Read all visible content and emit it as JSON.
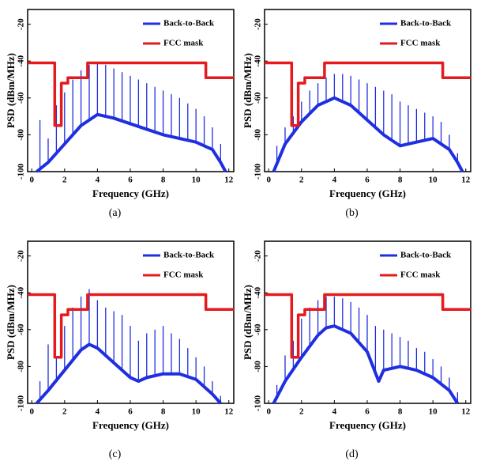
{
  "chart_data": [
    {
      "type": "line",
      "caption": "(a)",
      "xlabel": "Frequency (GHz)",
      "ylabel": "PSD (dBm/MHz)",
      "xlim": [
        -0.25,
        12.3
      ],
      "ylim": [
        -100,
        -12
      ],
      "xticks": [
        0,
        2,
        4,
        6,
        8,
        10,
        12
      ],
      "yticks": [
        -100,
        -80,
        -60,
        -40,
        -20
      ],
      "series": [
        {
          "name": "Back-to-Back",
          "color": "#1f2fe0",
          "x": [
            0.3,
            1,
            2,
            3,
            4,
            5,
            6,
            7,
            8,
            9,
            10,
            11,
            11.5,
            11.8
          ],
          "values": [
            -100,
            -95,
            -85,
            -75,
            -69,
            -71,
            -74,
            -77,
            -80,
            -82,
            -84,
            -88,
            -95,
            -100
          ],
          "peak_x": [
            0.5,
            1,
            1.5,
            2,
            2.5,
            3,
            3.5,
            4,
            4.5,
            5,
            5.5,
            6,
            6.5,
            7,
            7.5,
            8,
            8.5,
            9,
            9.5,
            10,
            10.5,
            11,
            11.5
          ],
          "peak_values": [
            -72,
            -82,
            -64,
            -57,
            -50,
            -45,
            -42,
            -41,
            -42,
            -44,
            -46,
            -48,
            -50,
            -52,
            -54,
            -56,
            -58,
            -60,
            -63,
            -66,
            -70,
            -76,
            -85
          ]
        },
        {
          "name": "FCC mask",
          "color": "#e41a1c",
          "x": [
            -0.25,
            1.4,
            1.4,
            1.8,
            1.8,
            2.2,
            2.2,
            3.4,
            3.4,
            10.6,
            10.6,
            12.3
          ],
          "values": [
            -41,
            -41,
            -75,
            -75,
            -52,
            -52,
            -49,
            -49,
            -41,
            -41,
            -49,
            -49
          ]
        }
      ]
    },
    {
      "type": "line",
      "caption": "(b)",
      "xlabel": "Frequency (GHz)",
      "ylabel": "PSD (dBm/MHz)",
      "xlim": [
        -0.25,
        12.3
      ],
      "ylim": [
        -100,
        -12
      ],
      "xticks": [
        0,
        2,
        4,
        6,
        8,
        10,
        12
      ],
      "yticks": [
        -100,
        -80,
        -60,
        -40,
        -20
      ],
      "series": [
        {
          "name": "Back-to-Back",
          "color": "#1f2fe0",
          "x": [
            0.3,
            1,
            2,
            3,
            4,
            5,
            6,
            7,
            8,
            9,
            10,
            11,
            11.5,
            11.8
          ],
          "values": [
            -100,
            -85,
            -73,
            -64,
            -60,
            -64,
            -72,
            -80,
            -86,
            -84,
            -82,
            -88,
            -95,
            -100
          ],
          "peak_x": [
            0.5,
            1,
            1.5,
            2,
            2.5,
            3,
            3.5,
            4,
            4.5,
            5,
            5.5,
            6,
            6.5,
            7,
            7.5,
            8,
            8.5,
            9,
            9.5,
            10,
            10.5,
            11,
            11.5
          ],
          "peak_values": [
            -86,
            -76,
            -70,
            -62,
            -56,
            -52,
            -49,
            -47,
            -47,
            -48,
            -50,
            -52,
            -54,
            -56,
            -58,
            -62,
            -64,
            -66,
            -68,
            -70,
            -73,
            -80,
            -90
          ]
        },
        {
          "name": "FCC mask",
          "color": "#e41a1c",
          "x": [
            -0.25,
            1.4,
            1.4,
            1.8,
            1.8,
            2.2,
            2.2,
            3.4,
            3.4,
            10.6,
            10.6,
            12.3
          ],
          "values": [
            -41,
            -41,
            -75,
            -75,
            -52,
            -52,
            -49,
            -49,
            -41,
            -41,
            -49,
            -49
          ]
        }
      ]
    },
    {
      "type": "line",
      "caption": "(c)",
      "xlabel": "Frequency (GHz)",
      "ylabel": "PSD (dBm/MHz)",
      "xlim": [
        -0.25,
        12.3
      ],
      "ylim": [
        -100,
        -12
      ],
      "xticks": [
        0,
        2,
        4,
        6,
        8,
        10,
        12
      ],
      "yticks": [
        -100,
        -80,
        -60,
        -40,
        -20
      ],
      "series": [
        {
          "name": "Back-to-Back",
          "color": "#1f2fe0",
          "x": [
            0.3,
            1,
            2,
            3,
            3.5,
            4,
            5,
            6,
            6.5,
            7,
            8,
            9,
            10,
            11,
            11.5
          ],
          "values": [
            -100,
            -93,
            -82,
            -71,
            -68,
            -70,
            -78,
            -86,
            -88,
            -86,
            -84,
            -84,
            -87,
            -95,
            -100
          ],
          "peak_x": [
            0.5,
            1,
            1.5,
            2,
            2.5,
            3,
            3.5,
            4,
            4.5,
            5,
            5.5,
            6,
            6.5,
            7,
            7.5,
            8,
            8.5,
            9,
            9.5,
            10,
            10.5,
            11,
            11.5
          ],
          "peak_values": [
            -88,
            -68,
            -75,
            -58,
            -48,
            -42,
            -38,
            -44,
            -48,
            -50,
            -52,
            -58,
            -66,
            -62,
            -60,
            -58,
            -62,
            -65,
            -70,
            -75,
            -80,
            -88,
            -96
          ]
        },
        {
          "name": "FCC mask",
          "color": "#e41a1c",
          "x": [
            -0.25,
            1.4,
            1.4,
            1.8,
            1.8,
            2.2,
            2.2,
            3.4,
            3.4,
            10.6,
            10.6,
            12.3
          ],
          "values": [
            -41,
            -41,
            -75,
            -75,
            -52,
            -52,
            -49,
            -49,
            -41,
            -41,
            -49,
            -49
          ]
        }
      ]
    },
    {
      "type": "line",
      "caption": "(d)",
      "xlabel": "Frequency (GHz)",
      "ylabel": "PSD (dBm/MHz)",
      "xlim": [
        -0.25,
        12.3
      ],
      "ylim": [
        -100,
        -12
      ],
      "xticks": [
        0,
        2,
        4,
        6,
        8,
        10,
        12
      ],
      "yticks": [
        -100,
        -80,
        -60,
        -40,
        -20
      ],
      "series": [
        {
          "name": "Back-to-Back",
          "color": "#1f2fe0",
          "x": [
            0.3,
            1,
            2,
            3,
            3.5,
            4,
            5,
            6,
            6.7,
            7,
            8,
            9,
            10,
            11,
            11.5
          ],
          "values": [
            -100,
            -88,
            -75,
            -63,
            -59,
            -58,
            -62,
            -72,
            -88,
            -82,
            -80,
            -82,
            -86,
            -93,
            -100
          ],
          "peak_x": [
            0.5,
            1,
            1.5,
            2,
            2.5,
            3,
            3.5,
            4,
            4.5,
            5,
            5.5,
            6,
            6.5,
            7,
            7.5,
            8,
            8.5,
            9,
            9.5,
            10,
            10.5,
            11,
            11.5
          ],
          "peak_values": [
            -90,
            -74,
            -66,
            -54,
            -48,
            -44,
            -42,
            -42,
            -43,
            -45,
            -48,
            -52,
            -58,
            -60,
            -62,
            -64,
            -66,
            -70,
            -72,
            -76,
            -80,
            -86,
            -94
          ]
        },
        {
          "name": "FCC mask",
          "color": "#e41a1c",
          "x": [
            -0.25,
            1.4,
            1.4,
            1.8,
            1.8,
            2.2,
            2.2,
            3.4,
            3.4,
            10.6,
            10.6,
            12.3
          ],
          "values": [
            -41,
            -41,
            -75,
            -75,
            -52,
            -52,
            -49,
            -49,
            -41,
            -41,
            -49,
            -49
          ]
        }
      ]
    }
  ]
}
